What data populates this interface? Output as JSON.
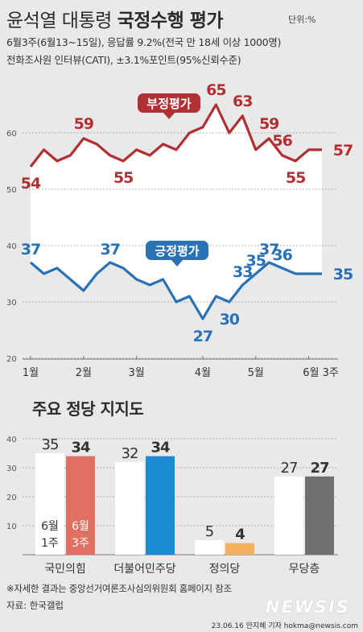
{
  "header": {
    "title_part1": "윤석열 대통령 ",
    "title_part2": "국정수행 평가",
    "unit": "단위:%",
    "subtitle1": "6월3주(6월13~15일), 응답률 9.2%(전국 만 18세 이상 1000명)",
    "subtitle2": "전화조사원 인터뷰(CATI), ±3.1%포인트(95%신뢰수준)"
  },
  "colors": {
    "negative": "#b03034",
    "positive": "#2a72b5",
    "bar_prev_ppp": "#ffffff",
    "bar_curr_ppp": "#e27062",
    "bar_curr_dem": "#1a8ad4",
    "bar_curr_justice": "#f2b25e",
    "bar_curr_none": "#707070",
    "bg": "#e9e9e9"
  },
  "chart_data": [
    {
      "type": "line",
      "x_ticks": [
        "1월",
        "2월",
        "3월",
        "4월",
        "5월",
        "6월 3주"
      ],
      "ylim": [
        20,
        70
      ],
      "y_ticks": [
        "20",
        "30",
        "40",
        "50",
        "60"
      ],
      "series": [
        {
          "name": "부정평가",
          "values": [
            54,
            57,
            55,
            56,
            59,
            58,
            56,
            55,
            57,
            56,
            58,
            57,
            60,
            61,
            65,
            60,
            63,
            57,
            59,
            56,
            55,
            57,
            57
          ],
          "labels": [
            {
              "i": 0,
              "v": "54"
            },
            {
              "i": 4,
              "v": "59"
            },
            {
              "i": 7,
              "v": "55"
            },
            {
              "i": 14,
              "v": "65"
            },
            {
              "i": 16,
              "v": "63"
            },
            {
              "i": 18,
              "v": "59"
            },
            {
              "i": 19,
              "v": "56"
            },
            {
              "i": 20,
              "v": "55"
            },
            {
              "i": 22,
              "v": "57"
            }
          ]
        },
        {
          "name": "긍정평가",
          "values": [
            37,
            35,
            36,
            34,
            32,
            35,
            37,
            36,
            34,
            33,
            34,
            30,
            31,
            27,
            31,
            30,
            33,
            35,
            37,
            36,
            35,
            35,
            35
          ],
          "labels": [
            {
              "i": 0,
              "v": "37"
            },
            {
              "i": 6,
              "v": "37"
            },
            {
              "i": 13,
              "v": "27"
            },
            {
              "i": 15,
              "v": "30"
            },
            {
              "i": 16,
              "v": "33"
            },
            {
              "i": 17,
              "v": "35"
            },
            {
              "i": 18,
              "v": "37"
            },
            {
              "i": 19,
              "v": "36"
            },
            {
              "i": 22,
              "v": "35"
            }
          ]
        }
      ]
    },
    {
      "type": "bar",
      "title": "주요 정당 지지도",
      "categories": [
        "국민의힘",
        "더불어민주당",
        "정의당",
        "무당층"
      ],
      "ylim": [
        0,
        40
      ],
      "y_ticks": [
        "10",
        "20",
        "30",
        "40"
      ],
      "series": [
        {
          "name": "6월 1주",
          "values": [
            35,
            32,
            5,
            27
          ]
        },
        {
          "name": "6월 3주",
          "values": [
            34,
            34,
            4,
            27
          ]
        }
      ]
    }
  ],
  "footer": {
    "note": "※자세한 결과는 중앙선거여론조사심의위원회 홈페이지 참조",
    "source": "자료: 한국갤럽",
    "credit": "23.06.16 안지혜 기자 hokma@newsis.com",
    "brand": "NEWSIS"
  }
}
